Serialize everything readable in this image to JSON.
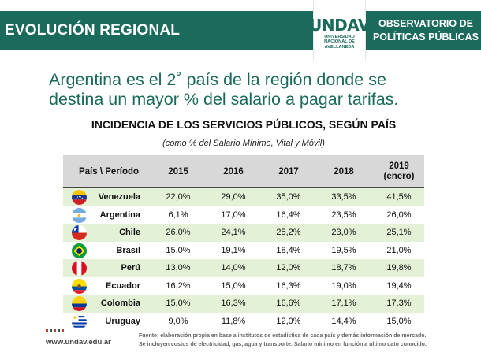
{
  "header": {
    "left_title": "EVOLUCIÓN REGIONAL",
    "logo_mark": "UNDAV",
    "logo_line1": "UNIVERSIDAD",
    "logo_line2": "NACIONAL DE",
    "logo_line3": "AVELLANEDA",
    "right_title_line1": "OBSERVATORIO DE",
    "right_title_line2": "POLÍTICAS PÚBLICAS",
    "bar_color": "#1a6b5b"
  },
  "headline": {
    "line1": "Argentina es el 2˚ país de la región donde se",
    "line2": "destina un mayor % del salario a pagar tarifas."
  },
  "table": {
    "title": "INCIDENCIA DE LOS SERVICIOS PÚBLICOS, SEGÚN PAÍS",
    "subtitle": "(como % del Salario Mínimo, Vital y Móvil)",
    "columns": [
      "País \\ Período",
      "2015",
      "2016",
      "2017",
      "2018",
      "2019",
      "(enero)"
    ],
    "rows": [
      {
        "country": "Venezuela",
        "flag": "venezuela-flag-icon",
        "values": [
          "22,0%",
          "29,0%",
          "35,0%",
          "33,5%",
          "41,5%"
        ]
      },
      {
        "country": "Argentina",
        "flag": "argentina-flag-icon",
        "values": [
          "6,1%",
          "17,0%",
          "16,4%",
          "23,5%",
          "26,0%"
        ]
      },
      {
        "country": "Chile",
        "flag": "chile-flag-icon",
        "values": [
          "26,0%",
          "24,1%",
          "25,2%",
          "23,0%",
          "25,1%"
        ]
      },
      {
        "country": "Brasil",
        "flag": "brazil-flag-icon",
        "values": [
          "15,0%",
          "19,1%",
          "18,4%",
          "19,5%",
          "21,0%"
        ]
      },
      {
        "country": "Perú",
        "flag": "peru-flag-icon",
        "values": [
          "13,0%",
          "14,0%",
          "12,0%",
          "18,7%",
          "19,8%"
        ]
      },
      {
        "country": "Ecuador",
        "flag": "ecuador-flag-icon",
        "values": [
          "16,2%",
          "15,0%",
          "16,3%",
          "19,0%",
          "19,4%"
        ]
      },
      {
        "country": "Colombia",
        "flag": "colombia-flag-icon",
        "values": [
          "15,0%",
          "16,3%",
          "16,6%",
          "17,1%",
          "17,3%"
        ]
      },
      {
        "country": "Uruguay",
        "flag": "uruguay-flag-icon",
        "values": [
          "9,0%",
          "11,8%",
          "12,0%",
          "14,4%",
          "15,0%"
        ]
      }
    ],
    "stripe_color": "#e3f1d6"
  },
  "footer": {
    "url": "www.undav.edu.ar",
    "note_line1": "Fuente: elaboración propia en base a institutos de estadística de cada país y demás información de mercado.",
    "note_line2": "Se incluyen costos de electricidad, gas, agua y transporte. Salario mínimo en función a último dato conocido."
  }
}
